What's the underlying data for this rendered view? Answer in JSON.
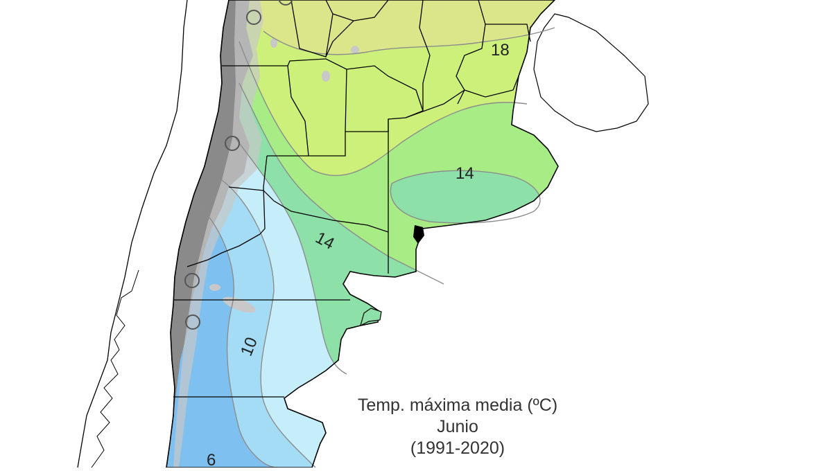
{
  "map": {
    "colors": {
      "band_18_plus": "#dbe68a",
      "band_16_18": "#ccf07a",
      "band_14_16": "#a8ec86",
      "band_12_14": "#8de0a8",
      "band_10_12": "#c6eefa",
      "band_8_10": "#a5dcf5",
      "band_6_8": "#7ec0f0",
      "mountains": "#8a8a8a",
      "mountains_light": "#c8c8c8",
      "land_outline": "#000000",
      "isoline": "#8c8c8c",
      "water": "#ffffff"
    },
    "isoline_labels": [
      {
        "text": "18",
        "value": 18
      },
      {
        "text": "14",
        "value": 14
      },
      {
        "text": "14",
        "value": 14
      },
      {
        "text": "10",
        "value": 10
      },
      {
        "text": "6",
        "value": 6
      }
    ],
    "stations": [
      "station-1",
      "station-2",
      "station-3",
      "station-4",
      "station-5",
      "station-6"
    ]
  },
  "caption": {
    "line1": "Temp. máxima media (ºC)",
    "line2": "Junio",
    "line3": "(1991-2020)"
  }
}
